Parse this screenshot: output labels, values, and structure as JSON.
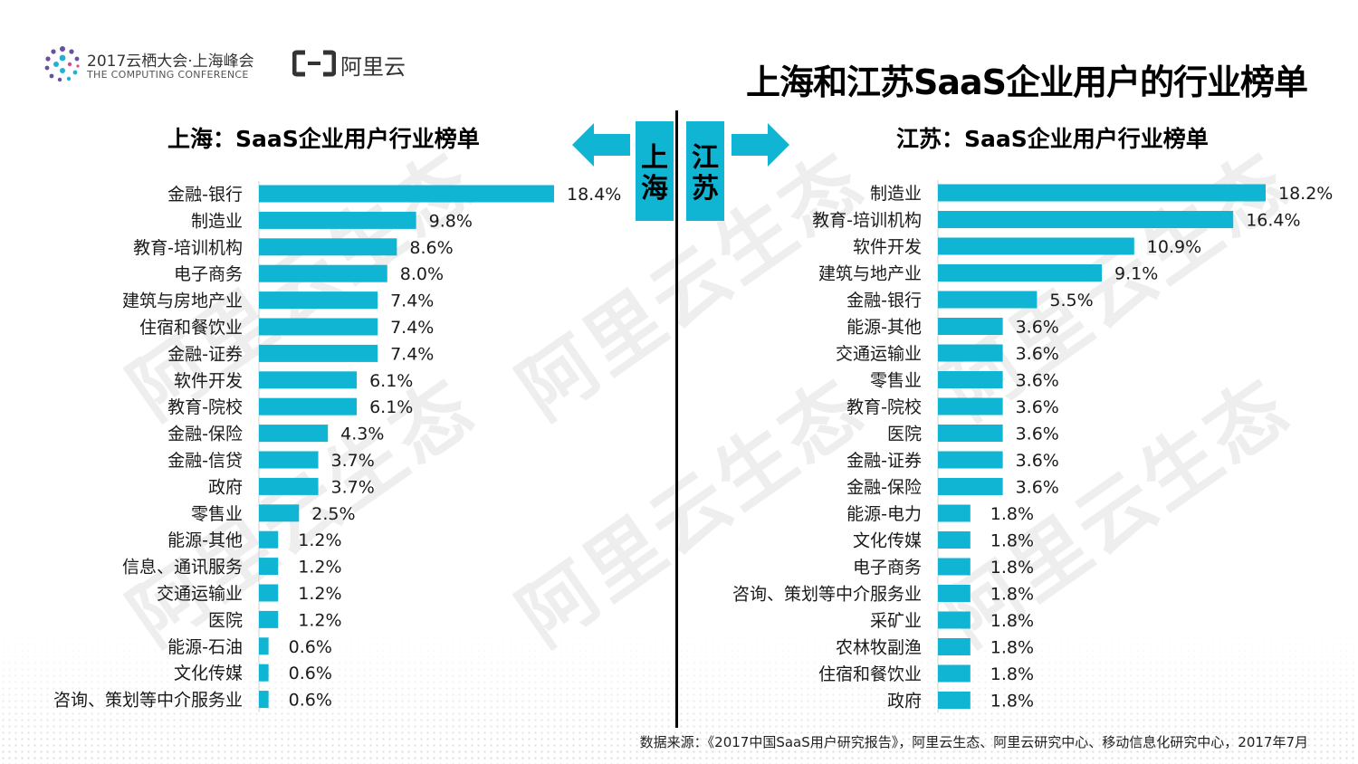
{
  "header": {
    "conference_title": "2017云栖大会·上海峰会",
    "conference_subtitle": "THE COMPUTING CONFERENCE",
    "brand_name": "阿里云",
    "main_title": "上海和江苏SaaS企业用户的行业榜单"
  },
  "watermark_text": "阿里云生态",
  "region_labels": {
    "left": "上海",
    "right": "江苏"
  },
  "source_note": "数据来源：《2017中国SaaS用户研究报告》，阿里云生态、阿里云研究中心、移动信息化研究中心，2017年7月",
  "colors": {
    "bar": "#0fb5d3",
    "text": "#1a1a1a"
  },
  "chart_data": [
    {
      "type": "bar",
      "orientation": "horizontal",
      "title": "上海：SaaS企业用户行业榜单",
      "unit": "%",
      "categories": [
        "金融-银行",
        "制造业",
        "教育-培训机构",
        "电子商务",
        "建筑与房地产业",
        "住宿和餐饮业",
        "金融-证券",
        "软件开发",
        "教育-院校",
        "金融-保险",
        "金融-信贷",
        "政府",
        "零售业",
        "能源-其他",
        "信息、通讯服务",
        "交通运输业",
        "医院",
        "能源-石油",
        "文化传媒",
        "咨询、策划等中介服务业"
      ],
      "values": [
        18.4,
        9.8,
        8.6,
        8.0,
        7.4,
        7.4,
        7.4,
        6.1,
        6.1,
        4.3,
        3.7,
        3.7,
        2.5,
        1.2,
        1.2,
        1.2,
        1.2,
        0.6,
        0.6,
        0.6
      ],
      "value_labels": [
        "18.4%",
        "9.8%",
        "8.6%",
        "8.0%",
        "7.4%",
        "7.4%",
        "7.4%",
        "6.1%",
        "6.1%",
        "4.3%",
        "3.7%",
        "3.7%",
        "2.5%",
        "1.2%",
        "1.2%",
        "1.2%",
        "1.2%",
        "0.6%",
        "0.6%",
        "0.6%"
      ],
      "xlim": [
        0,
        18.4
      ]
    },
    {
      "type": "bar",
      "orientation": "horizontal",
      "title": "江苏：SaaS企业用户行业榜单",
      "unit": "%",
      "categories": [
        "制造业",
        "教育-培训机构",
        "软件开发",
        "建筑与地产业",
        "金融-银行",
        "能源-其他",
        "交通运输业",
        "零售业",
        "教育-院校",
        "医院",
        "金融-证券",
        "金融-保险",
        "能源-电力",
        "文化传媒",
        "电子商务",
        "咨询、策划等中介服务业",
        "采矿业",
        "农林牧副渔",
        "住宿和餐饮业",
        "政府"
      ],
      "values": [
        18.2,
        16.4,
        10.9,
        9.1,
        5.5,
        3.6,
        3.6,
        3.6,
        3.6,
        3.6,
        3.6,
        3.6,
        1.8,
        1.8,
        1.8,
        1.8,
        1.8,
        1.8,
        1.8,
        1.8
      ],
      "value_labels": [
        "18.2%",
        "16.4%",
        "10.9%",
        "9.1%",
        "5.5%",
        "3.6%",
        "3.6%",
        "3.6%",
        "3.6%",
        "3.6%",
        "3.6%",
        "3.6%",
        "1.8%",
        "1.8%",
        "1.8%",
        "1.8%",
        "1.8%",
        "1.8%",
        "1.8%",
        "1.8%"
      ],
      "xlim": [
        0,
        18.2
      ]
    }
  ]
}
